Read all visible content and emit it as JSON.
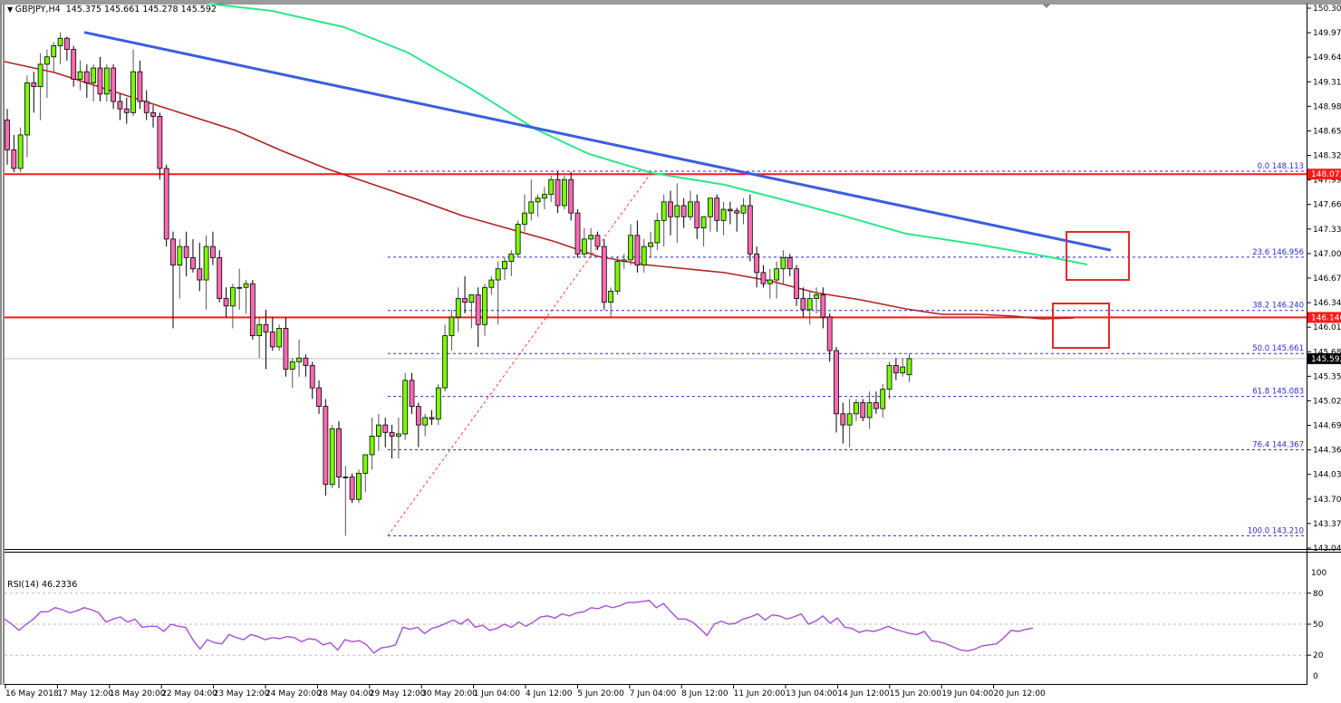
{
  "window": {
    "symbol_header": "GBPJPY,H4",
    "ohlc": "145.375 145.661 145.278 145.592",
    "rsi_header": "RSI(14) 46.2336"
  },
  "colors": {
    "bull": "#7cfc00",
    "bear": "#ff69b4",
    "trendline": "#3a5ee0",
    "ma_green": "#2ee68a",
    "ma_red": "#b22222",
    "horizontal": "#ff1a1a",
    "fib": "#2b2bd6",
    "rsi": "#a64fd6",
    "box": "#e8262b"
  },
  "chart_data": [
    {
      "type": "candlestick",
      "title": "GBPJPY,H4",
      "subtitle": "145.375 145.661 145.278 145.592",
      "ylim": [
        143.045,
        150.305
      ],
      "y_ticks": [
        "150.305",
        "149.975",
        "149.645",
        "149.315",
        "148.985",
        "148.655",
        "148.325",
        "147.995",
        "147.665",
        "147.335",
        "147.005",
        "146.675",
        "146.345",
        "146.015",
        "145.685",
        "145.355",
        "145.025",
        "144.695",
        "144.365",
        "144.035",
        "143.705",
        "143.375",
        "143.045"
      ],
      "x_ticks": [
        "16 May 2018",
        "17 May 12:00",
        "18 May 20:00",
        "22 May 04:00",
        "23 May 12:00",
        "24 May 20:00",
        "28 May 04:00",
        "29 May 12:00",
        "30 May 20:00",
        "1 Jun 04:00",
        "4 Jun 12:00",
        "5 Jun 20:00",
        "7 Jun 04:00",
        "8 Jun 12:00",
        "11 Jun 20:00",
        "13 Jun 04:00",
        "14 Jun 12:00",
        "15 Jun 20:00",
        "19 Jun 04:00",
        "20 Jun 12:00"
      ],
      "price_tags": [
        {
          "value": "148.073",
          "color": "#ff1a1a"
        },
        {
          "value": "146.146",
          "color": "#ff1a1a"
        },
        {
          "value": "145.592",
          "color": "#000000"
        }
      ],
      "horizontal_lines": [
        148.073,
        146.146
      ],
      "fibonacci": {
        "from": 143.21,
        "to": 148.113,
        "levels": [
          {
            "label": "0.0 148.113",
            "price": 148.113
          },
          {
            "label": "23.6 146.956",
            "price": 146.956
          },
          {
            "label": "38.2 146.240",
            "price": 146.24
          },
          {
            "label": "50.0 145.661",
            "price": 145.661
          },
          {
            "label": "61.8 145.083",
            "price": 145.083
          },
          {
            "label": "76.4 144.367",
            "price": 144.367
          },
          {
            "label": "100.0 143.210",
            "price": 143.21
          }
        ]
      },
      "trendline": {
        "from": [
          93,
          149.98
        ],
        "to": [
          1226,
          147.05
        ],
        "color": "#3a5ee0"
      },
      "moving_averages": [
        {
          "name": "MA green (long)",
          "color": "#2ee68a"
        },
        {
          "name": "MA red (100)",
          "color": "#b22222"
        }
      ],
      "annotations": [
        "red box at trendline/23.6% fib resistance",
        "red box at 100 MA / 146.146 resistance"
      ],
      "candles": [
        [
          148.8,
          148.95,
          148.2,
          148.4
        ],
        [
          148.4,
          148.6,
          148.1,
          148.15
        ],
        [
          148.15,
          148.7,
          148.1,
          148.6
        ],
        [
          148.6,
          149.4,
          148.3,
          149.3
        ],
        [
          149.3,
          149.45,
          148.9,
          149.25
        ],
        [
          149.25,
          149.7,
          148.8,
          149.55
        ],
        [
          149.55,
          149.75,
          149.1,
          149.65
        ],
        [
          149.65,
          149.85,
          149.45,
          149.8
        ],
        [
          149.8,
          149.98,
          149.55,
          149.9
        ],
        [
          149.9,
          149.92,
          149.6,
          149.75
        ],
        [
          149.75,
          149.8,
          149.25,
          149.35
        ],
        [
          149.35,
          149.6,
          149.2,
          149.45
        ],
        [
          149.45,
          149.55,
          149.1,
          149.3
        ],
        [
          149.3,
          149.55,
          149.05,
          149.5
        ],
        [
          149.5,
          149.65,
          149.05,
          149.15
        ],
        [
          149.15,
          149.55,
          149.05,
          149.5
        ],
        [
          149.5,
          149.55,
          148.95,
          149.05
        ],
        [
          149.05,
          149.15,
          148.8,
          148.95
        ],
        [
          148.95,
          149.1,
          148.75,
          148.9
        ],
        [
          148.9,
          149.75,
          148.85,
          149.45
        ],
        [
          149.45,
          149.6,
          148.95,
          149.05
        ],
        [
          149.05,
          149.2,
          148.8,
          148.9
        ],
        [
          148.9,
          149.0,
          148.7,
          148.85
        ],
        [
          148.85,
          148.9,
          148.0,
          148.15
        ],
        [
          148.15,
          148.2,
          147.1,
          147.2
        ],
        [
          147.2,
          147.3,
          146.0,
          146.85
        ],
        [
          146.85,
          147.2,
          146.4,
          147.1
        ],
        [
          147.1,
          147.3,
          146.7,
          146.95
        ],
        [
          146.95,
          147.2,
          146.75,
          146.8
        ],
        [
          146.8,
          147.15,
          146.5,
          146.65
        ],
        [
          146.65,
          147.25,
          146.25,
          147.1
        ],
        [
          147.1,
          147.3,
          146.85,
          146.95
        ],
        [
          146.95,
          147.05,
          146.35,
          146.4
        ],
        [
          146.4,
          146.55,
          146.15,
          146.3
        ],
        [
          146.3,
          146.6,
          146.0,
          146.55
        ],
        [
          146.55,
          146.8,
          146.25,
          146.55
        ],
        [
          146.55,
          146.65,
          146.2,
          146.6
        ],
        [
          146.6,
          146.65,
          145.85,
          145.9
        ],
        [
          145.9,
          146.15,
          145.6,
          146.05
        ],
        [
          146.05,
          146.25,
          145.45,
          145.95
        ],
        [
          145.95,
          146.15,
          145.7,
          145.75
        ],
        [
          145.75,
          146.05,
          145.7,
          146.0
        ],
        [
          146.0,
          146.15,
          145.35,
          145.45
        ],
        [
          145.45,
          145.6,
          145.2,
          145.55
        ],
        [
          145.55,
          145.85,
          145.35,
          145.6
        ],
        [
          145.6,
          145.65,
          145.35,
          145.5
        ],
        [
          145.5,
          145.55,
          145.05,
          145.2
        ],
        [
          145.2,
          145.3,
          144.85,
          144.95
        ],
        [
          144.95,
          145.05,
          143.75,
          143.9
        ],
        [
          143.9,
          144.7,
          143.85,
          144.65
        ],
        [
          144.65,
          144.75,
          143.85,
          144.0
        ],
        [
          144.0,
          144.15,
          143.21,
          144.0
        ],
        [
          144.0,
          144.05,
          143.65,
          143.7
        ],
        [
          143.7,
          144.1,
          143.65,
          144.05
        ],
        [
          144.05,
          144.2,
          143.8,
          144.3
        ],
        [
          144.3,
          144.8,
          144.1,
          144.55
        ],
        [
          144.55,
          144.85,
          144.35,
          144.7
        ],
        [
          144.7,
          144.8,
          144.4,
          144.6
        ],
        [
          144.6,
          144.7,
          144.25,
          144.55
        ],
        [
          144.55,
          144.8,
          144.25,
          144.58
        ],
        [
          144.58,
          145.4,
          144.5,
          145.3
        ],
        [
          145.3,
          145.4,
          144.85,
          144.95
        ],
        [
          144.95,
          145.0,
          144.4,
          144.7
        ],
        [
          144.7,
          144.85,
          144.55,
          144.8
        ],
        [
          144.8,
          144.9,
          144.7,
          144.78
        ],
        [
          144.78,
          145.25,
          144.7,
          145.2
        ],
        [
          145.2,
          146.05,
          145.15,
          145.9
        ],
        [
          145.9,
          146.25,
          145.7,
          146.15
        ],
        [
          146.15,
          146.55,
          145.95,
          146.4
        ],
        [
          146.4,
          146.7,
          146.2,
          146.35
        ],
        [
          146.35,
          146.45,
          146.0,
          146.45
        ],
        [
          146.45,
          146.55,
          145.75,
          146.05
        ],
        [
          146.05,
          146.6,
          145.9,
          146.55
        ],
        [
          146.55,
          146.7,
          146.45,
          146.65
        ],
        [
          146.65,
          146.9,
          146.05,
          146.8
        ],
        [
          146.8,
          146.95,
          146.65,
          146.9
        ],
        [
          146.9,
          147.05,
          146.7,
          147.0
        ],
        [
          147.0,
          147.45,
          146.95,
          147.4
        ],
        [
          147.4,
          147.8,
          147.3,
          147.55
        ],
        [
          147.55,
          148.0,
          147.45,
          147.7
        ],
        [
          147.7,
          147.8,
          147.5,
          147.75
        ],
        [
          147.75,
          147.9,
          147.6,
          147.8
        ],
        [
          147.8,
          148.05,
          147.7,
          148.0
        ],
        [
          148.0,
          148.11,
          147.55,
          147.65
        ],
        [
          147.65,
          148.05,
          147.6,
          148.0
        ],
        [
          148.0,
          148.1,
          147.45,
          147.55
        ],
        [
          147.55,
          147.6,
          146.95,
          147.0
        ],
        [
          147.0,
          147.35,
          146.95,
          147.2
        ],
        [
          147.2,
          147.35,
          146.95,
          147.25
        ],
        [
          147.25,
          147.3,
          147.05,
          147.1
        ],
        [
          147.1,
          147.2,
          146.25,
          146.35
        ],
        [
          146.35,
          146.55,
          146.15,
          146.5
        ],
        [
          146.5,
          146.95,
          146.45,
          146.9
        ],
        [
          146.9,
          147.0,
          146.8,
          146.92
        ],
        [
          146.92,
          147.4,
          146.85,
          147.25
        ],
        [
          147.25,
          147.45,
          146.75,
          146.85
        ],
        [
          146.85,
          147.2,
          146.75,
          147.1
        ],
        [
          147.1,
          147.3,
          146.95,
          147.15
        ],
        [
          147.15,
          147.55,
          147.05,
          147.45
        ],
        [
          147.45,
          147.8,
          147.1,
          147.7
        ],
        [
          147.7,
          147.85,
          147.25,
          147.5
        ],
        [
          147.5,
          147.95,
          147.15,
          147.65
        ],
        [
          147.65,
          147.75,
          147.35,
          147.5
        ],
        [
          147.5,
          147.85,
          147.45,
          147.7
        ],
        [
          147.7,
          147.8,
          147.2,
          147.35
        ],
        [
          147.35,
          147.45,
          147.1,
          147.5
        ],
        [
          147.5,
          147.75,
          147.3,
          147.75
        ],
        [
          147.75,
          147.8,
          147.3,
          147.45
        ],
        [
          147.45,
          147.7,
          147.25,
          147.6
        ],
        [
          147.6,
          147.7,
          147.4,
          147.58
        ],
        [
          147.58,
          147.62,
          147.3,
          147.55
        ],
        [
          147.55,
          147.75,
          147.4,
          147.65
        ],
        [
          147.65,
          147.8,
          146.9,
          147.0
        ],
        [
          147.0,
          147.1,
          146.55,
          146.75
        ],
        [
          146.75,
          146.85,
          146.55,
          146.6
        ],
        [
          146.6,
          146.8,
          146.4,
          146.65
        ],
        [
          146.65,
          146.9,
          146.4,
          146.8
        ],
        [
          146.8,
          147.05,
          146.6,
          146.95
        ],
        [
          146.95,
          147.0,
          146.7,
          146.8
        ],
        [
          146.8,
          146.85,
          146.3,
          146.4
        ],
        [
          146.4,
          146.55,
          146.15,
          146.25
        ],
        [
          146.25,
          146.5,
          146.05,
          146.4
        ],
        [
          146.4,
          146.55,
          146.2,
          146.45
        ],
        [
          146.45,
          146.55,
          146.0,
          146.15
        ],
        [
          146.15,
          146.2,
          145.55,
          145.7
        ],
        [
          145.7,
          145.75,
          144.6,
          144.85
        ],
        [
          144.85,
          145.0,
          144.45,
          144.7
        ],
        [
          144.7,
          145.05,
          144.4,
          144.85
        ],
        [
          144.85,
          145.05,
          144.75,
          145.0
        ],
        [
          145.0,
          145.05,
          144.75,
          144.8
        ],
        [
          144.8,
          145.15,
          144.65,
          145.0
        ],
        [
          145.0,
          145.15,
          144.85,
          144.92
        ],
        [
          144.92,
          145.25,
          144.8,
          145.18
        ],
        [
          145.18,
          145.55,
          145.05,
          145.5
        ],
        [
          145.5,
          145.6,
          145.3,
          145.4
        ],
        [
          145.4,
          145.6,
          145.35,
          145.48
        ],
        [
          145.375,
          145.661,
          145.278,
          145.592
        ]
      ]
    },
    {
      "type": "line",
      "title": "RSI(14) 46.2336",
      "ylim": [
        0,
        100
      ],
      "y_ticks": [
        "100",
        "80",
        "50",
        "20",
        "0"
      ],
      "levels": [
        80,
        50,
        20
      ],
      "values": [
        55,
        50,
        44,
        50,
        55,
        62,
        62,
        66,
        64,
        61,
        63,
        66,
        64,
        61,
        52,
        55,
        57,
        52,
        55,
        47,
        48,
        48,
        43,
        50,
        48,
        47,
        35,
        26,
        35,
        32,
        31,
        40,
        37,
        35,
        40,
        38,
        35,
        37,
        36,
        38,
        37,
        33,
        36,
        35,
        30,
        32,
        25,
        35,
        33,
        34,
        30,
        22,
        27,
        28,
        30,
        47,
        45,
        47,
        41,
        46,
        48,
        51,
        54,
        50,
        55,
        47,
        49,
        44,
        46,
        50,
        47,
        52,
        48,
        52,
        57,
        58,
        56,
        60,
        58,
        61,
        62,
        66,
        65,
        68,
        66,
        68,
        71,
        71,
        72,
        73,
        66,
        70,
        62,
        55,
        55,
        52,
        46,
        39,
        50,
        53,
        50,
        51,
        55,
        57,
        60,
        54,
        59,
        58,
        55,
        57,
        60,
        50,
        53,
        58,
        51,
        56,
        47,
        46,
        42,
        44,
        43,
        45,
        48,
        45,
        43,
        41,
        40,
        43,
        34,
        33,
        31,
        28,
        25,
        24,
        26,
        29,
        30,
        31,
        37,
        44,
        43,
        45,
        46.2
      ]
    }
  ]
}
